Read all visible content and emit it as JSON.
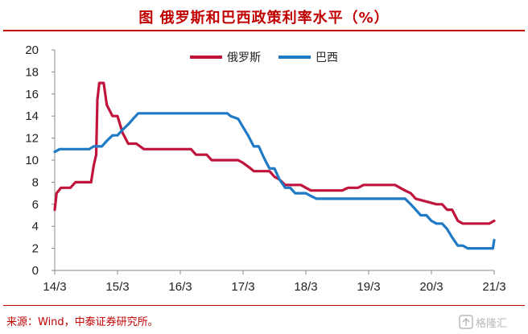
{
  "header": {
    "title": "图 俄罗斯和巴西政策利率水平（%）"
  },
  "footer": {
    "source": "来源：Wind，中泰证券研究所。",
    "watermark": "格隆汇"
  },
  "chart_data": {
    "type": "line",
    "x_ticks": [
      "14/3",
      "15/3",
      "16/3",
      "17/3",
      "18/3",
      "19/3",
      "20/3",
      "21/3"
    ],
    "xlim": [
      2014.0,
      2021.0
    ],
    "ylim": [
      0,
      20
    ],
    "y_ticks": [
      0,
      2,
      4,
      6,
      8,
      10,
      12,
      14,
      16,
      18,
      20
    ],
    "grid": false,
    "legend_position": "top-center",
    "series": [
      {
        "name": "俄罗斯",
        "color": "#c0143c",
        "points": [
          [
            2014.0,
            5.5
          ],
          [
            2014.03,
            7.0
          ],
          [
            2014.1,
            7.5
          ],
          [
            2014.25,
            7.5
          ],
          [
            2014.33,
            8.0
          ],
          [
            2014.5,
            8.0
          ],
          [
            2014.58,
            8.0
          ],
          [
            2014.62,
            9.5
          ],
          [
            2014.66,
            10.5
          ],
          [
            2014.68,
            15.5
          ],
          [
            2014.71,
            17.0
          ],
          [
            2014.78,
            17.0
          ],
          [
            2014.83,
            15.0
          ],
          [
            2014.92,
            14.0
          ],
          [
            2015.0,
            14.0
          ],
          [
            2015.08,
            12.5
          ],
          [
            2015.17,
            11.5
          ],
          [
            2015.3,
            11.5
          ],
          [
            2015.42,
            11.0
          ],
          [
            2016.08,
            11.0
          ],
          [
            2016.17,
            11.0
          ],
          [
            2016.25,
            10.5
          ],
          [
            2016.42,
            10.5
          ],
          [
            2016.5,
            10.0
          ],
          [
            2016.75,
            10.0
          ],
          [
            2016.92,
            10.0
          ],
          [
            2017.0,
            9.75
          ],
          [
            2017.12,
            9.25
          ],
          [
            2017.17,
            9.0
          ],
          [
            2017.42,
            9.0
          ],
          [
            2017.5,
            8.5
          ],
          [
            2017.58,
            8.25
          ],
          [
            2017.67,
            7.75
          ],
          [
            2017.92,
            7.75
          ],
          [
            2018.0,
            7.5
          ],
          [
            2018.08,
            7.25
          ],
          [
            2018.58,
            7.25
          ],
          [
            2018.67,
            7.5
          ],
          [
            2018.83,
            7.5
          ],
          [
            2018.92,
            7.75
          ],
          [
            2019.42,
            7.75
          ],
          [
            2019.5,
            7.5
          ],
          [
            2019.58,
            7.25
          ],
          [
            2019.67,
            7.0
          ],
          [
            2019.75,
            6.5
          ],
          [
            2019.92,
            6.25
          ],
          [
            2020.08,
            6.0
          ],
          [
            2020.17,
            6.0
          ],
          [
            2020.25,
            5.5
          ],
          [
            2020.33,
            5.5
          ],
          [
            2020.42,
            4.5
          ],
          [
            2020.5,
            4.25
          ],
          [
            2020.92,
            4.25
          ],
          [
            2021.0,
            4.5
          ]
        ]
      },
      {
        "name": "巴西",
        "color": "#1f7ac6",
        "points": [
          [
            2014.0,
            10.75
          ],
          [
            2014.08,
            11.0
          ],
          [
            2014.55,
            11.0
          ],
          [
            2014.62,
            11.25
          ],
          [
            2014.75,
            11.25
          ],
          [
            2014.83,
            11.75
          ],
          [
            2014.92,
            12.25
          ],
          [
            2015.0,
            12.25
          ],
          [
            2015.08,
            12.75
          ],
          [
            2015.17,
            13.25
          ],
          [
            2015.25,
            13.75
          ],
          [
            2015.33,
            14.25
          ],
          [
            2016.75,
            14.25
          ],
          [
            2016.8,
            14.0
          ],
          [
            2016.92,
            13.75
          ],
          [
            2017.0,
            13.0
          ],
          [
            2017.08,
            12.25
          ],
          [
            2017.17,
            11.25
          ],
          [
            2017.25,
            11.25
          ],
          [
            2017.33,
            10.25
          ],
          [
            2017.42,
            9.25
          ],
          [
            2017.5,
            9.25
          ],
          [
            2017.58,
            8.25
          ],
          [
            2017.67,
            7.5
          ],
          [
            2017.75,
            7.5
          ],
          [
            2017.83,
            7.0
          ],
          [
            2018.0,
            7.0
          ],
          [
            2018.08,
            6.75
          ],
          [
            2018.17,
            6.5
          ],
          [
            2019.58,
            6.5
          ],
          [
            2019.67,
            6.0
          ],
          [
            2019.75,
            5.5
          ],
          [
            2019.83,
            5.0
          ],
          [
            2019.92,
            5.0
          ],
          [
            2020.0,
            4.5
          ],
          [
            2020.08,
            4.25
          ],
          [
            2020.17,
            4.25
          ],
          [
            2020.25,
            3.75
          ],
          [
            2020.33,
            3.0
          ],
          [
            2020.42,
            2.25
          ],
          [
            2020.5,
            2.25
          ],
          [
            2020.58,
            2.0
          ],
          [
            2020.92,
            2.0
          ],
          [
            2020.98,
            2.0
          ],
          [
            2021.0,
            2.75
          ]
        ]
      }
    ]
  }
}
